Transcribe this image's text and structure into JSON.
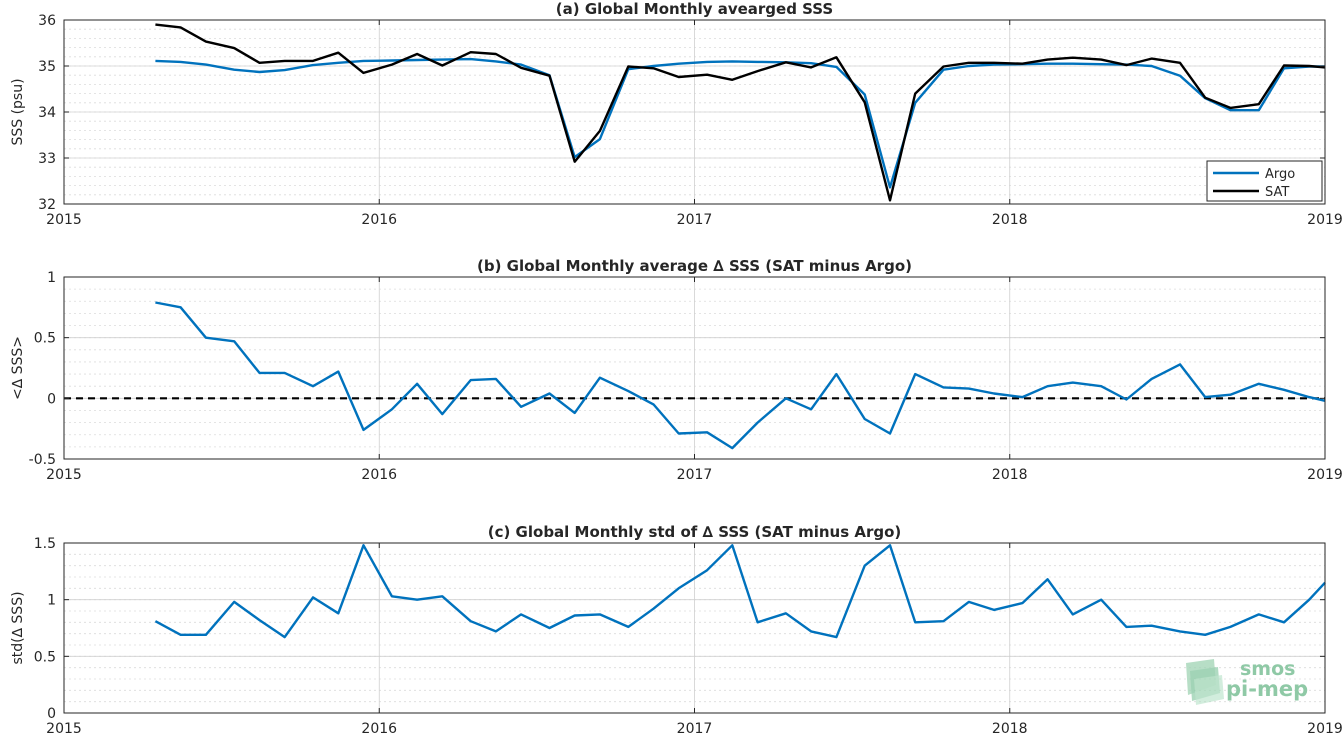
{
  "chart_data": [
    {
      "type": "line",
      "title": "(a) Global Monthly avearged SSS",
      "xlabel": "",
      "ylabel": "SSS (psu)",
      "xlim": [
        2015,
        2019
      ],
      "ylim": [
        32,
        36
      ],
      "xticks": [
        "2015",
        "2016",
        "2017",
        "2018",
        "2019"
      ],
      "yticks": [
        "32",
        "33",
        "34",
        "35",
        "36"
      ],
      "grid": true,
      "legend": "bottom-right",
      "x": [
        2015.29,
        2015.37,
        2015.45,
        2015.54,
        2015.62,
        2015.7,
        2015.79,
        2015.87,
        2015.95,
        2016.04,
        2016.12,
        2016.2,
        2016.29,
        2016.37,
        2016.45,
        2016.54,
        2016.62,
        2016.7,
        2016.79,
        2016.87,
        2016.95,
        2017.04,
        2017.12,
        2017.2,
        2017.29,
        2017.37,
        2017.45,
        2017.54,
        2017.62,
        2017.7,
        2017.79,
        2017.87,
        2017.95,
        2018.04,
        2018.12,
        2018.2,
        2018.29,
        2018.37,
        2018.45,
        2018.54,
        2018.62,
        2018.7,
        2018.79,
        2018.87,
        2018.95,
        2019.0
      ],
      "series": [
        {
          "name": "Argo",
          "color": "#0072BD",
          "values": [
            35.11,
            35.09,
            35.03,
            34.92,
            34.87,
            34.91,
            35.02,
            35.07,
            35.11,
            35.12,
            35.13,
            35.14,
            35.15,
            35.1,
            35.03,
            34.8,
            33.02,
            33.41,
            34.93,
            35.0,
            35.05,
            35.09,
            35.1,
            35.09,
            35.08,
            35.06,
            34.98,
            34.38,
            32.36,
            34.2,
            34.92,
            35.0,
            35.03,
            35.04,
            35.05,
            35.05,
            35.04,
            35.03,
            35.0,
            34.79,
            34.3,
            34.04,
            34.04,
            34.95,
            34.99,
            34.99
          ]
        },
        {
          "name": "SAT",
          "color": "#000000",
          "values": [
            35.9,
            35.84,
            35.53,
            35.39,
            35.07,
            35.11,
            35.11,
            35.29,
            34.85,
            35.03,
            35.26,
            35.01,
            35.3,
            35.26,
            34.96,
            34.79,
            32.92,
            33.59,
            34.99,
            34.95,
            34.76,
            34.81,
            34.7,
            34.89,
            35.08,
            34.97,
            35.19,
            34.21,
            32.08,
            34.4,
            34.99,
            35.07,
            35.07,
            35.05,
            35.14,
            35.18,
            35.14,
            35.02,
            35.16,
            35.07,
            34.31,
            34.09,
            34.17,
            35.01,
            35.0,
            34.97
          ]
        }
      ]
    },
    {
      "type": "line",
      "title": "(b) Global Monthly average ∆ SSS (SAT minus Argo)",
      "xlabel": "",
      "ylabel": "<∆ SSS>",
      "xlim": [
        2015,
        2019
      ],
      "ylim": [
        -0.5,
        1
      ],
      "xticks": [
        "2015",
        "2016",
        "2017",
        "2018",
        "2019"
      ],
      "yticks": [
        "-0.5",
        "0",
        "0.5",
        "1"
      ],
      "grid": true,
      "reference_line": {
        "y": 0,
        "style": "dashed",
        "color": "#000000"
      },
      "x": [
        2015.29,
        2015.37,
        2015.45,
        2015.54,
        2015.62,
        2015.7,
        2015.79,
        2015.87,
        2015.95,
        2016.04,
        2016.12,
        2016.2,
        2016.29,
        2016.37,
        2016.45,
        2016.54,
        2016.62,
        2016.7,
        2016.79,
        2016.87,
        2016.95,
        2017.04,
        2017.12,
        2017.2,
        2017.29,
        2017.37,
        2017.45,
        2017.54,
        2017.62,
        2017.7,
        2017.79,
        2017.87,
        2017.95,
        2018.04,
        2018.12,
        2018.2,
        2018.29,
        2018.37,
        2018.45,
        2018.54,
        2018.62,
        2018.7,
        2018.79,
        2018.87,
        2018.95,
        2019.0
      ],
      "series": [
        {
          "color": "#0072BD",
          "values": [
            0.79,
            0.75,
            0.5,
            0.47,
            0.21,
            0.21,
            0.1,
            0.22,
            -0.26,
            -0.09,
            0.12,
            -0.13,
            0.15,
            0.16,
            -0.07,
            0.04,
            -0.12,
            0.17,
            0.06,
            -0.05,
            -0.29,
            -0.28,
            -0.41,
            -0.2,
            0.0,
            -0.09,
            0.2,
            -0.17,
            -0.29,
            0.2,
            0.09,
            0.08,
            0.04,
            0.01,
            0.1,
            0.13,
            0.1,
            -0.01,
            0.16,
            0.28,
            0.01,
            0.03,
            0.12,
            0.07,
            0.01,
            -0.02
          ]
        }
      ]
    },
    {
      "type": "line",
      "title": "(c) Global Monthly std of ∆ SSS (SAT minus Argo)",
      "xlabel": "",
      "ylabel": "std(∆ SSS)",
      "xlim": [
        2015,
        2019
      ],
      "ylim": [
        0,
        1.5
      ],
      "xticks": [
        "2015",
        "2016",
        "2017",
        "2018",
        "2019"
      ],
      "yticks": [
        "0",
        "0.5",
        "1",
        "1.5"
      ],
      "grid": true,
      "x": [
        2015.29,
        2015.37,
        2015.45,
        2015.54,
        2015.62,
        2015.7,
        2015.79,
        2015.87,
        2015.95,
        2016.04,
        2016.12,
        2016.2,
        2016.29,
        2016.37,
        2016.45,
        2016.54,
        2016.62,
        2016.7,
        2016.79,
        2016.87,
        2016.95,
        2017.04,
        2017.12,
        2017.2,
        2017.29,
        2017.37,
        2017.45,
        2017.54,
        2017.62,
        2017.7,
        2017.79,
        2017.87,
        2017.95,
        2018.04,
        2018.12,
        2018.2,
        2018.29,
        2018.37,
        2018.45,
        2018.54,
        2018.62,
        2018.7,
        2018.79,
        2018.87,
        2018.95,
        2019.0
      ],
      "series": [
        {
          "color": "#0072BD",
          "values": [
            0.81,
            0.69,
            0.69,
            0.98,
            0.82,
            0.67,
            1.02,
            0.88,
            1.48,
            1.03,
            1.0,
            1.03,
            0.81,
            0.72,
            0.87,
            0.75,
            0.86,
            0.87,
            0.76,
            0.92,
            1.1,
            1.26,
            1.48,
            0.8,
            0.88,
            0.72,
            0.67,
            1.3,
            1.48,
            0.8,
            0.81,
            0.98,
            0.91,
            0.97,
            1.18,
            0.87,
            1.0,
            0.76,
            0.77,
            0.72,
            0.69,
            0.76,
            0.87,
            0.8,
            1.0,
            1.15
          ]
        }
      ]
    }
  ],
  "watermark": {
    "line1": "smos",
    "line2": "pi-mep"
  }
}
